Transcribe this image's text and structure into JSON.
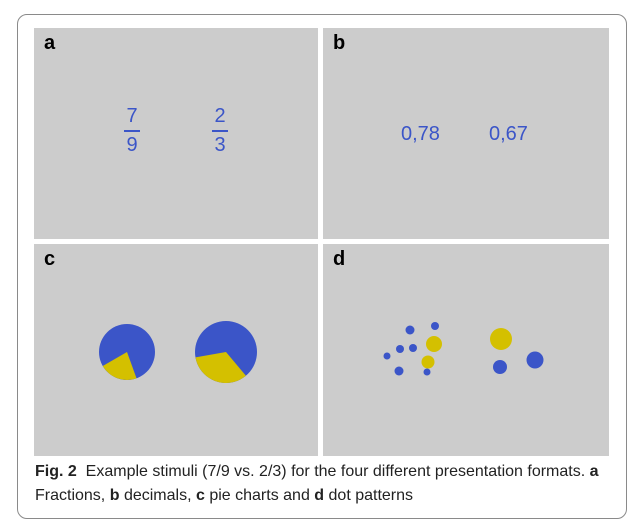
{
  "panels": {
    "a": {
      "letter": "a",
      "fractions": [
        {
          "num": "7",
          "den": "9"
        },
        {
          "num": "2",
          "den": "3"
        }
      ]
    },
    "b": {
      "letter": "b",
      "decimals": [
        "0,78",
        "0,67"
      ]
    },
    "c": {
      "letter": "c",
      "pies": [
        {
          "blue_fraction": 0.7778
        },
        {
          "blue_fraction": 0.6667
        }
      ]
    },
    "d": {
      "letter": "d"
    }
  },
  "caption": {
    "fig_label": "Fig. 2",
    "intro": "Example stimuli (7/9 vs. 2/3) for the four different presentation formats.",
    "a_letter": "a",
    "a_text": "Fractions,",
    "b_letter": "b",
    "b_text": "decimals,",
    "c_letter": "c",
    "c_text": "pie charts and",
    "d_letter": "d",
    "d_text": "dot patterns"
  },
  "colors": {
    "blue": "#3b55c8",
    "yellow": "#d4c000",
    "panel_bg": "#cccccc"
  }
}
